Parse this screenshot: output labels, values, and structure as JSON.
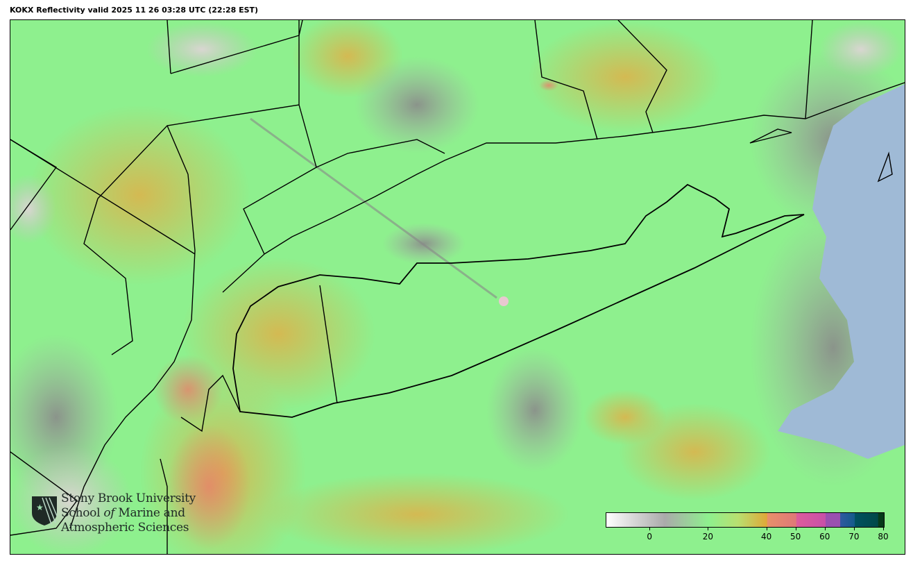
{
  "title": "KOKX Reflectivity valid 2025 11 26 03:28 UTC (22:28 EST)",
  "map": {
    "radar_site": "KOKX",
    "colors": {
      "background_green": "#8ef08e",
      "ocean": "#9fbad6",
      "precip_yellow": "#e0b84a",
      "precip_orange": "#e8906a",
      "clutter_gray": "#a8a8a8",
      "coastline": "#000000"
    }
  },
  "logo": {
    "line1": "Stony Brook University",
    "line2a": "School ",
    "line2b": "of",
    "line2c": " Marine and",
    "line3": "Atmospheric Sciences",
    "icon": "sbu-shield-star-icon"
  },
  "colorbar": {
    "range": [
      -15,
      80
    ],
    "ticks": [
      {
        "value": 0,
        "label": "0"
      },
      {
        "value": 20,
        "label": "20"
      },
      {
        "value": 40,
        "label": "40"
      },
      {
        "value": 50,
        "label": "50"
      },
      {
        "value": 60,
        "label": "60"
      },
      {
        "value": 70,
        "label": "70"
      },
      {
        "value": 80,
        "label": "80"
      }
    ],
    "stops": [
      {
        "value": -15,
        "color": "#ffffff"
      },
      {
        "value": 5,
        "color": "#aaaaaa"
      },
      {
        "value": 20,
        "color": "#8ef08e"
      },
      {
        "value": 30,
        "color": "#b8e070"
      },
      {
        "value": 40,
        "color": "#e0a838"
      },
      {
        "value": 40.1,
        "color": "#e8906a"
      },
      {
        "value": 50,
        "color": "#e07878"
      },
      {
        "value": 50.1,
        "color": "#dd5c9c"
      },
      {
        "value": 60,
        "color": "#c850a8"
      },
      {
        "value": 60.1,
        "color": "#9a50b0"
      },
      {
        "value": 65,
        "color": "#9a50b0"
      },
      {
        "value": 65.1,
        "color": "#2f5aa0"
      },
      {
        "value": 70,
        "color": "#145a8a"
      },
      {
        "value": 70.1,
        "color": "#005060"
      },
      {
        "value": 78,
        "color": "#004848"
      },
      {
        "value": 78.1,
        "color": "#063a1a"
      },
      {
        "value": 80,
        "color": "#063a1a"
      }
    ]
  }
}
